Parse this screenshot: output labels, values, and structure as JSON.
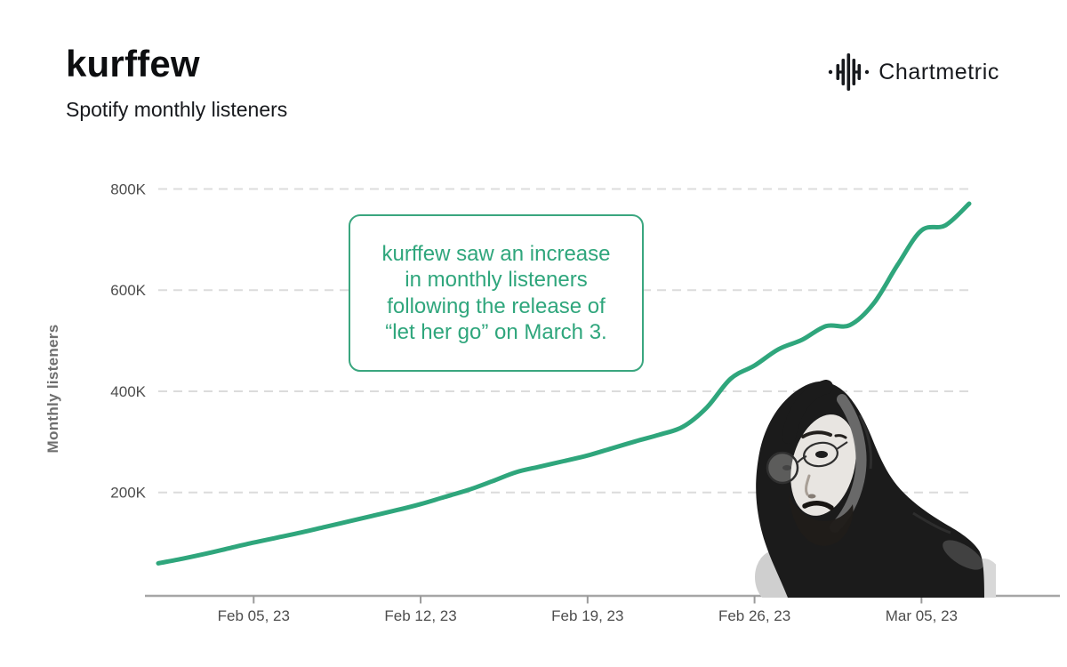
{
  "header": {
    "title": "kurffew",
    "subtitle": "Spotify monthly listeners"
  },
  "brand": {
    "name": "Chartmetric",
    "icon": "chartmetric-waveform-icon",
    "color": "#17191d"
  },
  "annotation": {
    "lines": [
      "kurffew saw an increase",
      "in monthly listeners",
      "following the release of",
      "“let her go” on March 3."
    ],
    "accent_color": "#2fa67c"
  },
  "artist_photo": {
    "description": "black-and-white cutout photo of hooded artist wearing round glasses, facing left",
    "position": "bottom-right of chart"
  },
  "chart_data": {
    "type": "line",
    "title": "Spotify monthly listeners",
    "xlabel": "",
    "ylabel": "Monthly listeners",
    "line_color": "#2fa67c",
    "grid": "horizontal dashed",
    "ylim": [
      0,
      840000
    ],
    "x": [
      "Feb 01",
      "Feb 02",
      "Feb 03",
      "Feb 04",
      "Feb 05",
      "Feb 06",
      "Feb 07",
      "Feb 08",
      "Feb 09",
      "Feb 10",
      "Feb 11",
      "Feb 12",
      "Feb 13",
      "Feb 14",
      "Feb 15",
      "Feb 16",
      "Feb 17",
      "Feb 18",
      "Feb 19",
      "Feb 20",
      "Feb 21",
      "Feb 22",
      "Feb 23",
      "Feb 24",
      "Feb 25",
      "Feb 26",
      "Feb 27",
      "Feb 28",
      "Mar 01",
      "Mar 02",
      "Mar 03",
      "Mar 04",
      "Mar 05",
      "Mar 06",
      "Mar 07"
    ],
    "values": [
      60000,
      69000,
      79000,
      90000,
      101000,
      111000,
      121000,
      132000,
      143000,
      154000,
      165000,
      177000,
      191000,
      205000,
      222000,
      240000,
      251000,
      262000,
      273000,
      287000,
      301000,
      314000,
      330000,
      368000,
      425000,
      451000,
      483000,
      502000,
      529000,
      531000,
      574000,
      650000,
      718000,
      728000,
      771000
    ],
    "y_tick_labels": [
      "200K",
      "400K",
      "600K",
      "800K"
    ],
    "y_tick_values": [
      200000,
      400000,
      600000,
      800000
    ],
    "x_tick_labels": [
      "Feb 05, 23",
      "Feb 12, 23",
      "Feb 19, 23",
      "Feb 26, 23",
      "Mar 05, 23"
    ],
    "x_tick_keys": [
      "Feb 05",
      "Feb 12",
      "Feb 19",
      "Feb 26",
      "Mar 05"
    ]
  },
  "style": {
    "grid_color": "#dcdcdc",
    "axis_color": "#a6a6a6",
    "tick_color": "#9a9a9a",
    "tick_label_color": "#4d4d4d"
  }
}
